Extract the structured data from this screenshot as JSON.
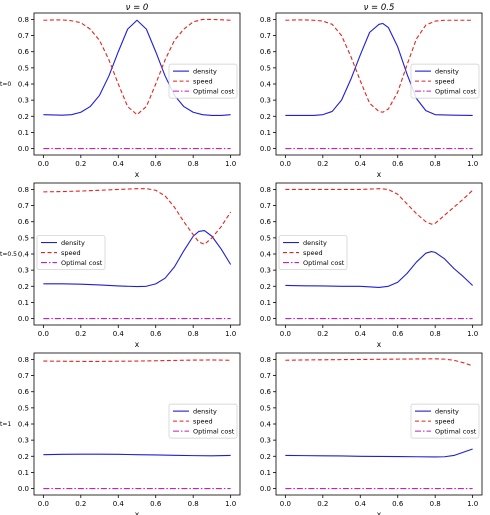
{
  "figure": {
    "legend_labels": [
      "density",
      "speed",
      "Optimal cost"
    ],
    "colors": {
      "density": "#1f1fd6",
      "speed": "#e8231e",
      "optimal_cost": "#c51fc5"
    }
  },
  "chart_data": [
    {
      "type": "line",
      "row": 0,
      "col": 0,
      "title": "ν = 0",
      "row_label": "t=0",
      "xlabel": "x",
      "ylabel": "",
      "xlim": [
        -0.05,
        1.05
      ],
      "ylim": [
        -0.04,
        0.84
      ],
      "xticks": [
        "0.0",
        "0.2",
        "0.4",
        "0.6",
        "0.8",
        "1.0"
      ],
      "yticks": [
        "0.0",
        "0.1",
        "0.2",
        "0.3",
        "0.4",
        "0.5",
        "0.6",
        "0.7",
        "0.8"
      ],
      "legend": "right",
      "series": [
        {
          "name": "density",
          "x": [
            0,
            0.05,
            0.1,
            0.15,
            0.2,
            0.25,
            0.3,
            0.35,
            0.4,
            0.45,
            0.5,
            0.55,
            0.6,
            0.65,
            0.7,
            0.75,
            0.8,
            0.85,
            0.9,
            0.95,
            1.0
          ],
          "y": [
            0.21,
            0.208,
            0.207,
            0.21,
            0.225,
            0.26,
            0.33,
            0.45,
            0.6,
            0.74,
            0.795,
            0.74,
            0.6,
            0.45,
            0.33,
            0.26,
            0.225,
            0.21,
            0.205,
            0.205,
            0.21
          ]
        },
        {
          "name": "speed",
          "x": [
            0,
            0.05,
            0.1,
            0.15,
            0.2,
            0.25,
            0.3,
            0.35,
            0.4,
            0.45,
            0.5,
            0.55,
            0.6,
            0.65,
            0.7,
            0.75,
            0.8,
            0.85,
            0.9,
            0.95,
            1.0
          ],
          "y": [
            0.795,
            0.797,
            0.797,
            0.792,
            0.78,
            0.74,
            0.67,
            0.55,
            0.4,
            0.26,
            0.21,
            0.26,
            0.4,
            0.55,
            0.67,
            0.74,
            0.785,
            0.8,
            0.8,
            0.798,
            0.795
          ]
        },
        {
          "name": "Optimal cost",
          "x": [
            0,
            1
          ],
          "y": [
            0,
            0
          ]
        }
      ]
    },
    {
      "type": "line",
      "row": 0,
      "col": 1,
      "title": "ν = 0.5",
      "row_label": "",
      "xlabel": "x",
      "ylabel": "",
      "xlim": [
        -0.05,
        1.05
      ],
      "ylim": [
        -0.04,
        0.84
      ],
      "xticks": [
        "0.0",
        "0.2",
        "0.4",
        "0.6",
        "0.8",
        "1.0"
      ],
      "yticks": [
        "0.0",
        "0.1",
        "0.2",
        "0.3",
        "0.4",
        "0.5",
        "0.6",
        "0.7",
        "0.8"
      ],
      "legend": "right",
      "series": [
        {
          "name": "density",
          "x": [
            0,
            0.05,
            0.1,
            0.15,
            0.2,
            0.25,
            0.3,
            0.35,
            0.4,
            0.45,
            0.5,
            0.52,
            0.55,
            0.6,
            0.65,
            0.7,
            0.75,
            0.8,
            0.85,
            0.9,
            0.95,
            1.0
          ],
          "y": [
            0.205,
            0.205,
            0.205,
            0.205,
            0.21,
            0.23,
            0.3,
            0.43,
            0.58,
            0.72,
            0.77,
            0.775,
            0.75,
            0.63,
            0.46,
            0.31,
            0.235,
            0.21,
            0.208,
            0.207,
            0.206,
            0.205
          ]
        },
        {
          "name": "speed",
          "x": [
            0,
            0.05,
            0.1,
            0.15,
            0.2,
            0.25,
            0.3,
            0.35,
            0.4,
            0.45,
            0.5,
            0.52,
            0.55,
            0.6,
            0.65,
            0.7,
            0.75,
            0.8,
            0.85,
            0.9,
            0.95,
            1.0
          ],
          "y": [
            0.795,
            0.797,
            0.797,
            0.795,
            0.79,
            0.77,
            0.7,
            0.57,
            0.42,
            0.28,
            0.23,
            0.225,
            0.245,
            0.35,
            0.52,
            0.68,
            0.765,
            0.79,
            0.795,
            0.795,
            0.795,
            0.795
          ]
        },
        {
          "name": "Optimal cost",
          "x": [
            0,
            1
          ],
          "y": [
            0,
            0
          ]
        }
      ]
    },
    {
      "type": "line",
      "row": 1,
      "col": 0,
      "title": "",
      "row_label": "t=0.5",
      "xlabel": "x",
      "ylabel": "",
      "xlim": [
        -0.05,
        1.05
      ],
      "ylim": [
        -0.04,
        0.84
      ],
      "xticks": [
        "0.0",
        "0.2",
        "0.4",
        "0.6",
        "0.8",
        "1.0"
      ],
      "yticks": [
        "0.0",
        "0.1",
        "0.2",
        "0.3",
        "0.4",
        "0.5",
        "0.6",
        "0.7",
        "0.8"
      ],
      "legend": "center-left",
      "series": [
        {
          "name": "density",
          "x": [
            0,
            0.1,
            0.2,
            0.3,
            0.4,
            0.5,
            0.55,
            0.6,
            0.65,
            0.7,
            0.75,
            0.8,
            0.83,
            0.86,
            0.9,
            0.95,
            1.0
          ],
          "y": [
            0.215,
            0.215,
            0.213,
            0.208,
            0.202,
            0.198,
            0.2,
            0.215,
            0.25,
            0.32,
            0.42,
            0.51,
            0.54,
            0.545,
            0.51,
            0.43,
            0.335
          ]
        },
        {
          "name": "speed",
          "x": [
            0,
            0.1,
            0.2,
            0.3,
            0.4,
            0.5,
            0.55,
            0.6,
            0.65,
            0.7,
            0.75,
            0.8,
            0.83,
            0.86,
            0.9,
            0.95,
            1.0
          ],
          "y": [
            0.785,
            0.787,
            0.79,
            0.795,
            0.8,
            0.805,
            0.805,
            0.795,
            0.76,
            0.69,
            0.6,
            0.52,
            0.475,
            0.46,
            0.5,
            0.57,
            0.66
          ]
        },
        {
          "name": "Optimal cost",
          "x": [
            0,
            1
          ],
          "y": [
            0,
            0
          ]
        }
      ]
    },
    {
      "type": "line",
      "row": 1,
      "col": 1,
      "title": "",
      "row_label": "",
      "xlabel": "x",
      "ylabel": "",
      "xlim": [
        -0.05,
        1.05
      ],
      "ylim": [
        -0.04,
        0.84
      ],
      "xticks": [
        "0.0",
        "0.2",
        "0.4",
        "0.6",
        "0.8",
        "1.0"
      ],
      "yticks": [
        "0.0",
        "0.1",
        "0.2",
        "0.3",
        "0.4",
        "0.5",
        "0.6",
        "0.7",
        "0.8"
      ],
      "legend": "center-left",
      "series": [
        {
          "name": "density",
          "x": [
            0,
            0.1,
            0.2,
            0.3,
            0.4,
            0.5,
            0.55,
            0.6,
            0.65,
            0.7,
            0.75,
            0.78,
            0.8,
            0.85,
            0.9,
            0.95,
            1.0
          ],
          "y": [
            0.205,
            0.203,
            0.202,
            0.2,
            0.2,
            0.193,
            0.2,
            0.225,
            0.28,
            0.35,
            0.405,
            0.415,
            0.41,
            0.37,
            0.31,
            0.26,
            0.205
          ]
        },
        {
          "name": "speed",
          "x": [
            0,
            0.1,
            0.2,
            0.3,
            0.4,
            0.5,
            0.55,
            0.6,
            0.65,
            0.7,
            0.75,
            0.78,
            0.8,
            0.85,
            0.9,
            0.95,
            1.0
          ],
          "y": [
            0.8,
            0.8,
            0.8,
            0.8,
            0.8,
            0.805,
            0.8,
            0.77,
            0.71,
            0.65,
            0.6,
            0.585,
            0.59,
            0.64,
            0.69,
            0.74,
            0.795
          ]
        },
        {
          "name": "Optimal cost",
          "x": [
            0,
            1
          ],
          "y": [
            0,
            0
          ]
        }
      ]
    },
    {
      "type": "line",
      "row": 2,
      "col": 0,
      "title": "",
      "row_label": "t=1",
      "xlabel": "x",
      "ylabel": "",
      "xlim": [
        -0.05,
        1.05
      ],
      "ylim": [
        -0.04,
        0.84
      ],
      "xticks": [
        "0.0",
        "0.2",
        "0.4",
        "0.6",
        "0.8",
        "1.0"
      ],
      "yticks": [
        "0.0",
        "0.1",
        "0.2",
        "0.3",
        "0.4",
        "0.5",
        "0.6",
        "0.7",
        "0.8"
      ],
      "legend": "right",
      "series": [
        {
          "name": "density",
          "x": [
            0,
            0.1,
            0.2,
            0.3,
            0.4,
            0.5,
            0.6,
            0.7,
            0.8,
            0.9,
            1.0
          ],
          "y": [
            0.21,
            0.212,
            0.213,
            0.213,
            0.212,
            0.21,
            0.208,
            0.206,
            0.204,
            0.203,
            0.205
          ]
        },
        {
          "name": "speed",
          "x": [
            0,
            0.1,
            0.2,
            0.3,
            0.4,
            0.5,
            0.6,
            0.7,
            0.8,
            0.9,
            1.0
          ],
          "y": [
            0.79,
            0.789,
            0.788,
            0.788,
            0.789,
            0.79,
            0.792,
            0.794,
            0.796,
            0.797,
            0.795
          ]
        },
        {
          "name": "Optimal cost",
          "x": [
            0,
            1
          ],
          "y": [
            0,
            0
          ]
        }
      ]
    },
    {
      "type": "line",
      "row": 2,
      "col": 1,
      "title": "",
      "row_label": "",
      "xlabel": "x",
      "ylabel": "",
      "xlim": [
        -0.05,
        1.05
      ],
      "ylim": [
        -0.04,
        0.84
      ],
      "xticks": [
        "0.0",
        "0.2",
        "0.4",
        "0.6",
        "0.8",
        "1.0"
      ],
      "yticks": [
        "0.0",
        "0.1",
        "0.2",
        "0.3",
        "0.4",
        "0.5",
        "0.6",
        "0.7",
        "0.8"
      ],
      "legend": "right",
      "series": [
        {
          "name": "density",
          "x": [
            0,
            0.1,
            0.2,
            0.3,
            0.4,
            0.5,
            0.6,
            0.7,
            0.8,
            0.85,
            0.9,
            0.95,
            1.0
          ],
          "y": [
            0.205,
            0.204,
            0.203,
            0.202,
            0.2,
            0.199,
            0.198,
            0.197,
            0.196,
            0.197,
            0.205,
            0.225,
            0.245
          ]
        },
        {
          "name": "speed",
          "x": [
            0,
            0.1,
            0.2,
            0.3,
            0.4,
            0.5,
            0.6,
            0.7,
            0.8,
            0.85,
            0.9,
            0.95,
            1.0
          ],
          "y": [
            0.795,
            0.797,
            0.798,
            0.799,
            0.8,
            0.801,
            0.802,
            0.803,
            0.804,
            0.802,
            0.795,
            0.78,
            0.76
          ]
        },
        {
          "name": "Optimal cost",
          "x": [
            0,
            1
          ],
          "y": [
            0,
            0
          ]
        }
      ]
    }
  ]
}
